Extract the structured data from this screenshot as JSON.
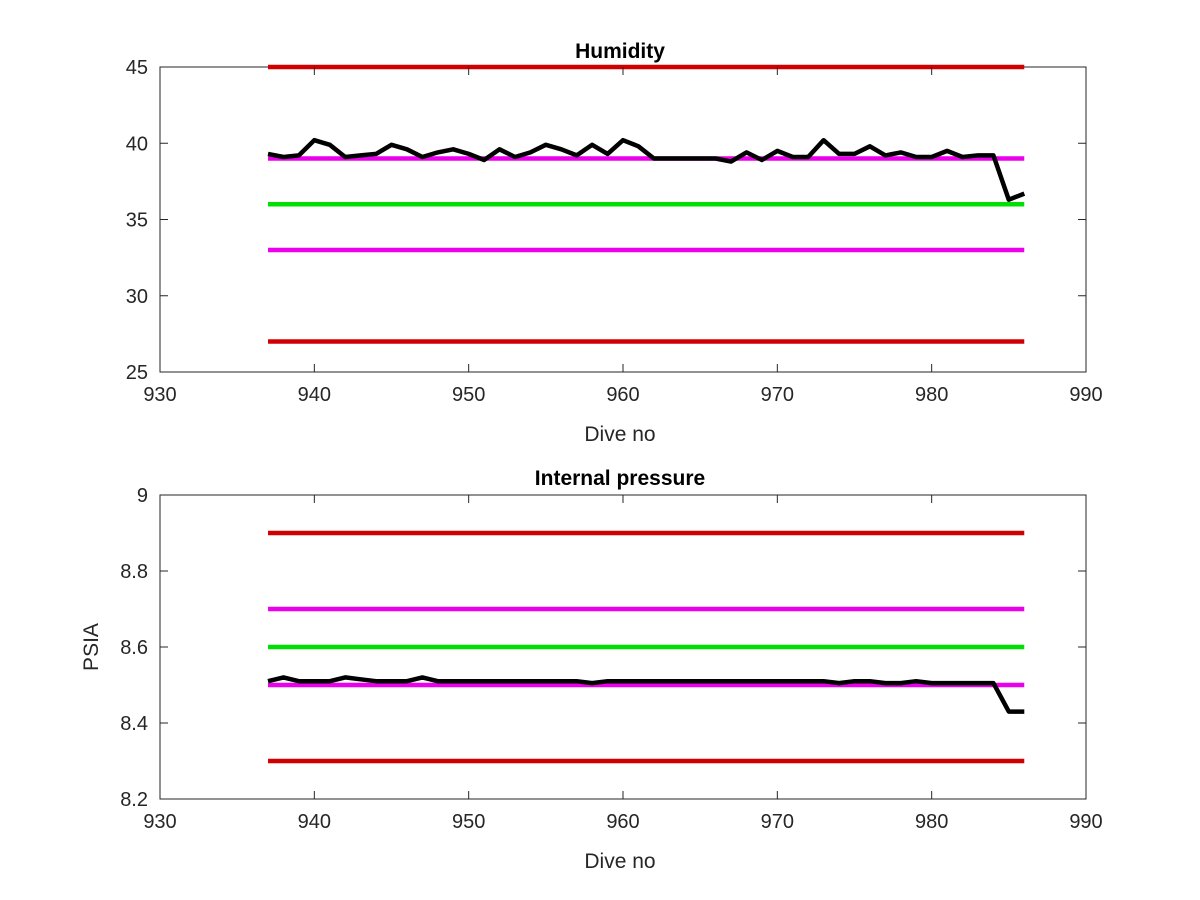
{
  "chart_data": [
    {
      "type": "line",
      "title": "Humidity",
      "xlabel": "Dive no",
      "ylabel": "",
      "xlim": [
        930,
        990
      ],
      "ylim": [
        25,
        45
      ],
      "xticks": [
        930,
        940,
        950,
        960,
        970,
        980,
        990
      ],
      "yticks": [
        25,
        30,
        35,
        40,
        45
      ],
      "grid": false,
      "x": [
        937,
        938,
        939,
        940,
        941,
        942,
        943,
        944,
        945,
        946,
        947,
        948,
        949,
        950,
        951,
        952,
        953,
        954,
        955,
        956,
        957,
        958,
        959,
        960,
        961,
        962,
        963,
        964,
        965,
        966,
        967,
        968,
        969,
        970,
        971,
        972,
        973,
        974,
        975,
        976,
        977,
        978,
        979,
        980,
        981,
        982,
        983,
        984,
        985,
        986
      ],
      "series": [
        {
          "color": "#000000",
          "values": [
            39.3,
            39.1,
            39.2,
            40.2,
            39.9,
            39.1,
            39.2,
            39.3,
            39.9,
            39.6,
            39.1,
            39.4,
            39.6,
            39.3,
            38.9,
            39.6,
            39.1,
            39.4,
            39.9,
            39.6,
            39.2,
            39.9,
            39.3,
            40.2,
            39.8,
            39.0,
            39.0,
            39.0,
            39.0,
            39.0,
            38.8,
            39.4,
            38.9,
            39.5,
            39.1,
            39.1,
            40.2,
            39.3,
            39.3,
            39.8,
            39.2,
            39.4,
            39.1,
            39.1,
            39.5,
            39.1,
            39.2,
            39.2,
            36.3,
            36.7
          ]
        }
      ],
      "reference_lines": [
        {
          "y": 45,
          "color": "#d00000",
          "x_range": [
            937,
            986
          ]
        },
        {
          "y": 39,
          "color": "#ea00ea",
          "x_range": [
            937,
            986
          ]
        },
        {
          "y": 36,
          "color": "#00e000",
          "x_range": [
            937,
            986
          ]
        },
        {
          "y": 33,
          "color": "#ea00ea",
          "x_range": [
            937,
            986
          ]
        },
        {
          "y": 27,
          "color": "#d00000",
          "x_range": [
            937,
            986
          ]
        }
      ]
    },
    {
      "type": "line",
      "title": "Internal pressure",
      "xlabel": "Dive no",
      "ylabel": "PSIA",
      "xlim": [
        930,
        990
      ],
      "ylim": [
        8.2,
        9.0
      ],
      "xticks": [
        930,
        940,
        950,
        960,
        970,
        980,
        990
      ],
      "yticks": [
        8.2,
        8.4,
        8.6,
        8.8,
        9
      ],
      "grid": false,
      "x": [
        937,
        938,
        939,
        940,
        941,
        942,
        943,
        944,
        945,
        946,
        947,
        948,
        949,
        950,
        951,
        952,
        953,
        954,
        955,
        956,
        957,
        958,
        959,
        960,
        961,
        962,
        963,
        964,
        965,
        966,
        967,
        968,
        969,
        970,
        971,
        972,
        973,
        974,
        975,
        976,
        977,
        978,
        979,
        980,
        981,
        982,
        983,
        984,
        985,
        986
      ],
      "series": [
        {
          "color": "#000000",
          "values": [
            8.51,
            8.52,
            8.51,
            8.51,
            8.51,
            8.52,
            8.515,
            8.51,
            8.51,
            8.51,
            8.52,
            8.51,
            8.51,
            8.51,
            8.51,
            8.51,
            8.51,
            8.51,
            8.51,
            8.51,
            8.51,
            8.505,
            8.51,
            8.51,
            8.51,
            8.51,
            8.51,
            8.51,
            8.51,
            8.51,
            8.51,
            8.51,
            8.51,
            8.51,
            8.51,
            8.51,
            8.51,
            8.505,
            8.51,
            8.51,
            8.505,
            8.505,
            8.51,
            8.505,
            8.505,
            8.505,
            8.505,
            8.505,
            8.43,
            8.43
          ]
        }
      ],
      "reference_lines": [
        {
          "y": 8.9,
          "color": "#d00000",
          "x_range": [
            937,
            986
          ]
        },
        {
          "y": 8.7,
          "color": "#ea00ea",
          "x_range": [
            937,
            986
          ]
        },
        {
          "y": 8.6,
          "color": "#00e000",
          "x_range": [
            937,
            986
          ]
        },
        {
          "y": 8.5,
          "color": "#ea00ea",
          "x_range": [
            937,
            986
          ]
        },
        {
          "y": 8.3,
          "color": "#d00000",
          "x_range": [
            937,
            986
          ]
        }
      ]
    }
  ]
}
